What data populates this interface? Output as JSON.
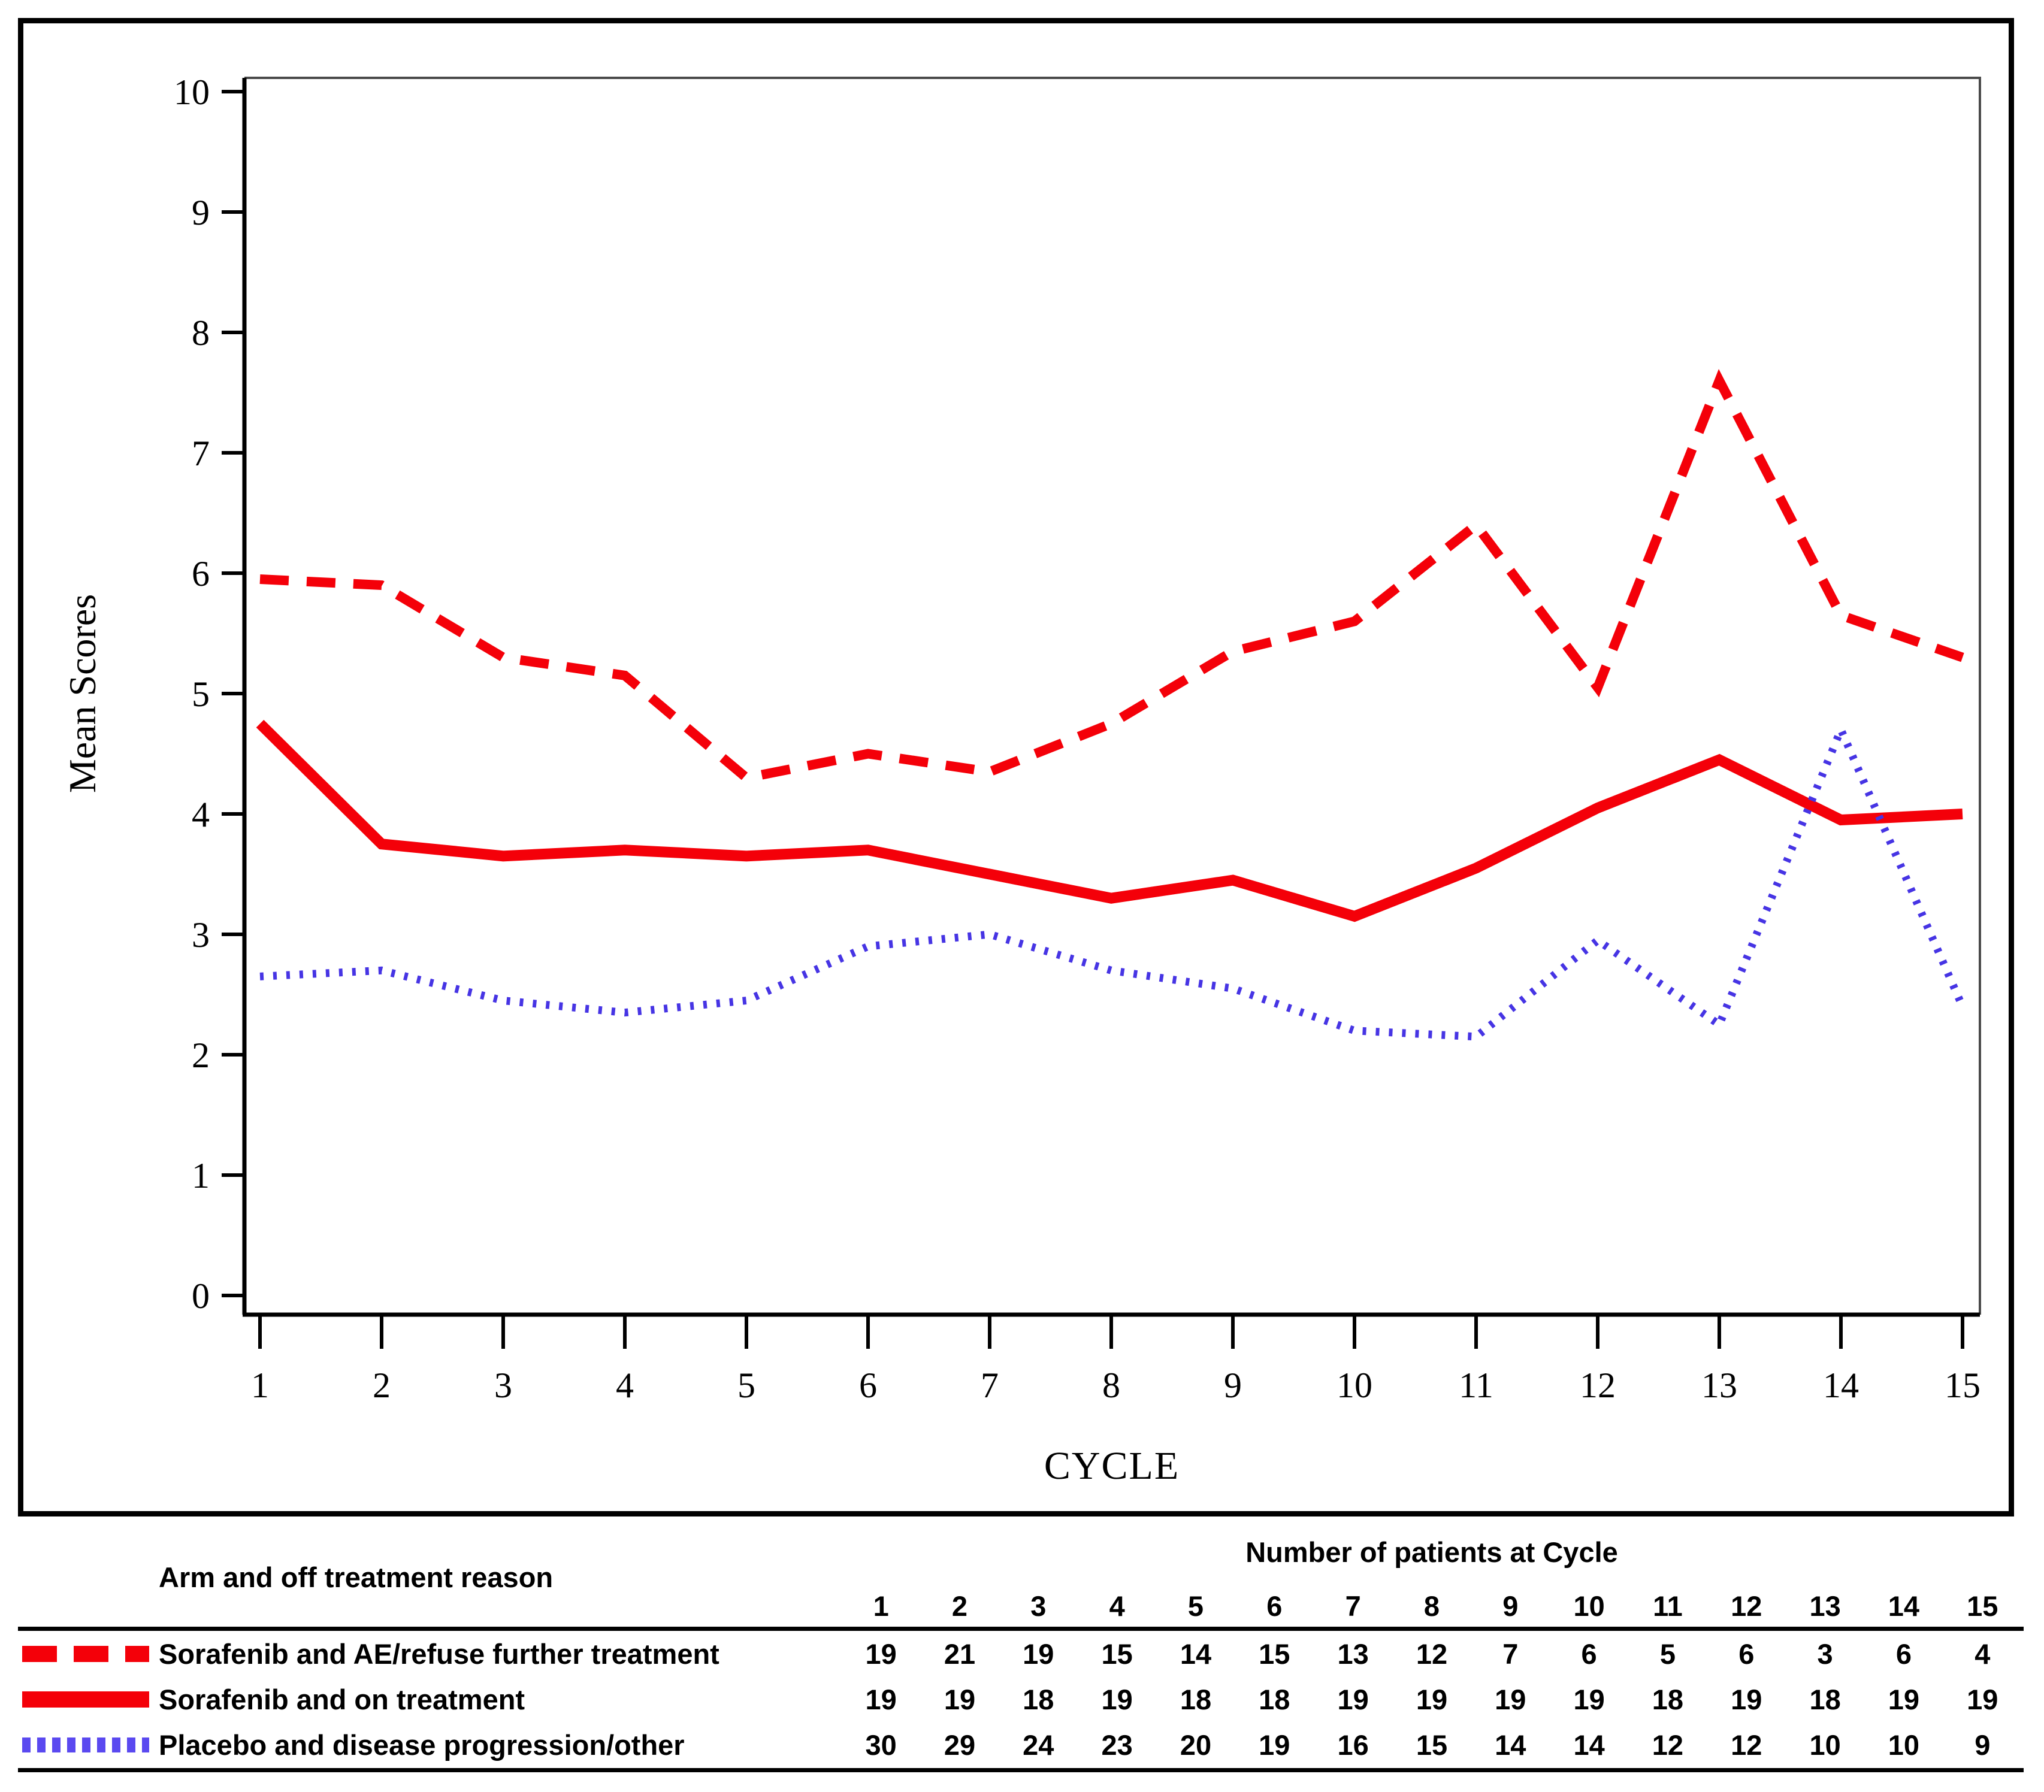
{
  "chart": {
    "ylabel": "Mean Scores",
    "xlabel": "CYCLE",
    "y_ticks": [
      0,
      1,
      2,
      3,
      4,
      5,
      6,
      7,
      8,
      9,
      10
    ],
    "x_ticks": [
      1,
      2,
      3,
      4,
      5,
      6,
      7,
      8,
      9,
      10,
      11,
      12,
      13,
      14,
      15
    ]
  },
  "chart_data": {
    "type": "line",
    "x": [
      1,
      2,
      3,
      4,
      5,
      6,
      7,
      8,
      9,
      10,
      11,
      12,
      13,
      14,
      15
    ],
    "xlabel": "CYCLE",
    "ylabel": "Mean Scores",
    "ylim": [
      0,
      10
    ],
    "xlim": [
      1,
      15
    ],
    "grid": false,
    "legend_position": "bottom-table",
    "series": [
      {
        "name": "Sorafenib and AE/refuse further treatment",
        "line_style": "dashed",
        "color": "#f40009",
        "values": [
          5.95,
          5.9,
          5.3,
          5.15,
          4.3,
          4.5,
          4.35,
          4.75,
          5.35,
          5.6,
          6.4,
          5.05,
          7.6,
          5.65,
          5.3
        ]
      },
      {
        "name": "Sorafenib and on treatment",
        "line_style": "solid",
        "color": "#f40009",
        "values": [
          4.75,
          3.75,
          3.65,
          3.7,
          3.65,
          3.7,
          3.5,
          3.3,
          3.45,
          3.15,
          3.55,
          4.05,
          4.45,
          3.95,
          4.0
        ]
      },
      {
        "name": "Placebo and disease progression/other",
        "line_style": "dotted",
        "color": "#4634e4",
        "values": [
          2.65,
          2.7,
          2.45,
          2.35,
          2.45,
          2.9,
          3.0,
          2.7,
          2.55,
          2.2,
          2.15,
          2.95,
          2.25,
          4.7,
          2.4
        ]
      }
    ]
  },
  "table": {
    "left_header": "Arm and off treatment reason",
    "right_header": "Number of patients at Cycle",
    "columns": [
      "1",
      "2",
      "3",
      "4",
      "5",
      "6",
      "7",
      "8",
      "9",
      "10",
      "11",
      "12",
      "13",
      "14",
      "15"
    ],
    "rows": [
      {
        "label": "Sorafenib and AE/refuse further treatment",
        "swatch": "dashed-red",
        "counts": [
          19,
          21,
          19,
          15,
          14,
          15,
          13,
          12,
          7,
          6,
          5,
          6,
          3,
          6,
          4
        ]
      },
      {
        "label": "Sorafenib and on treatment",
        "swatch": "solid-red",
        "counts": [
          19,
          19,
          18,
          19,
          18,
          18,
          19,
          19,
          19,
          19,
          18,
          19,
          18,
          19,
          19
        ]
      },
      {
        "label": "Placebo and disease progression/other",
        "swatch": "dotted-blue",
        "counts": [
          30,
          29,
          24,
          23,
          20,
          19,
          16,
          15,
          14,
          14,
          12,
          12,
          10,
          10,
          9
        ]
      }
    ]
  },
  "colors": {
    "series_red": "#f40009",
    "series_blue": "#4634e4",
    "legend_blue": "#5a49f0",
    "axis_black": "#000000",
    "frame_gray": "#4a4a4a"
  }
}
